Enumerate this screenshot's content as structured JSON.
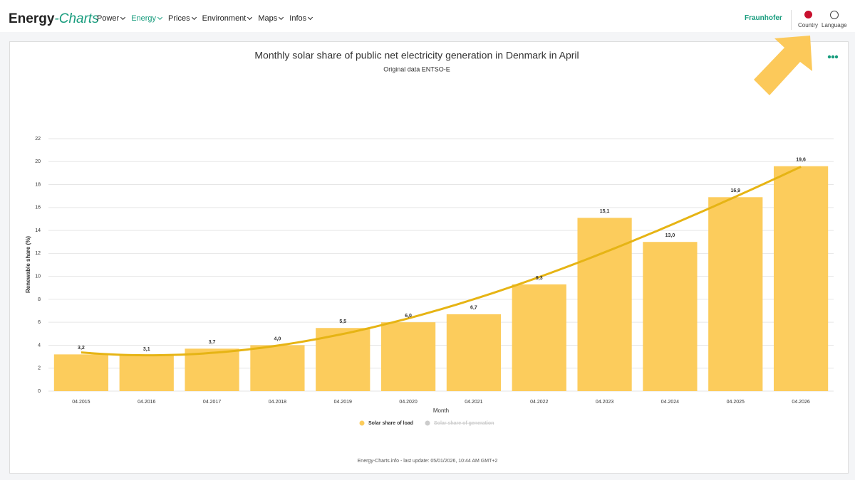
{
  "nav": {
    "logo_main": "Energy",
    "logo_accent": "-Charts",
    "menu": [
      "Power",
      "Energy",
      "Prices",
      "Environment",
      "Maps",
      "Infos"
    ],
    "active": 1,
    "brand": "Fraunhofer",
    "country": "Country",
    "language": "Language"
  },
  "chart_data": {
    "type": "bar",
    "title": "Monthly solar share of public net electricity generation in Denmark in April",
    "subtitle": "Original data ENTSO-E",
    "y_label": "Renewable share (%)",
    "x_label": "Month",
    "categories": [
      "04.2015",
      "04.2016",
      "04.2017",
      "04.2018",
      "04.2019",
      "04.2020",
      "04.2021",
      "04.2022",
      "04.2023",
      "04.2024",
      "04.2025",
      "04.2026"
    ],
    "series": [
      {
        "name": "Solar share of load",
        "color": "#fccc5c",
        "visible": true,
        "values": [
          3.2,
          3.1,
          3.7,
          4.0,
          5.5,
          6.0,
          6.7,
          9.3,
          15.1,
          13.0,
          16.9,
          19.6
        ],
        "value_labels": [
          "3,2",
          "3,1",
          "3,7",
          "4,0",
          "5,5",
          "6,0",
          "6,7",
          "9,3",
          "15,1",
          "13,0",
          "16,9",
          "19,6"
        ]
      },
      {
        "name": "Solar share of generation",
        "color": "#cccccc",
        "visible": false
      }
    ],
    "trendline": {
      "color": "#e6b414",
      "degree": 3
    },
    "ylim": [
      0,
      22
    ],
    "yticks": [
      0,
      2,
      4,
      6,
      8,
      10,
      12,
      14,
      16,
      18,
      20,
      22
    ],
    "grid": true,
    "footer": "Energy-Charts.info - last update: 05/01/2026, 10:44 AM GMT+2"
  }
}
